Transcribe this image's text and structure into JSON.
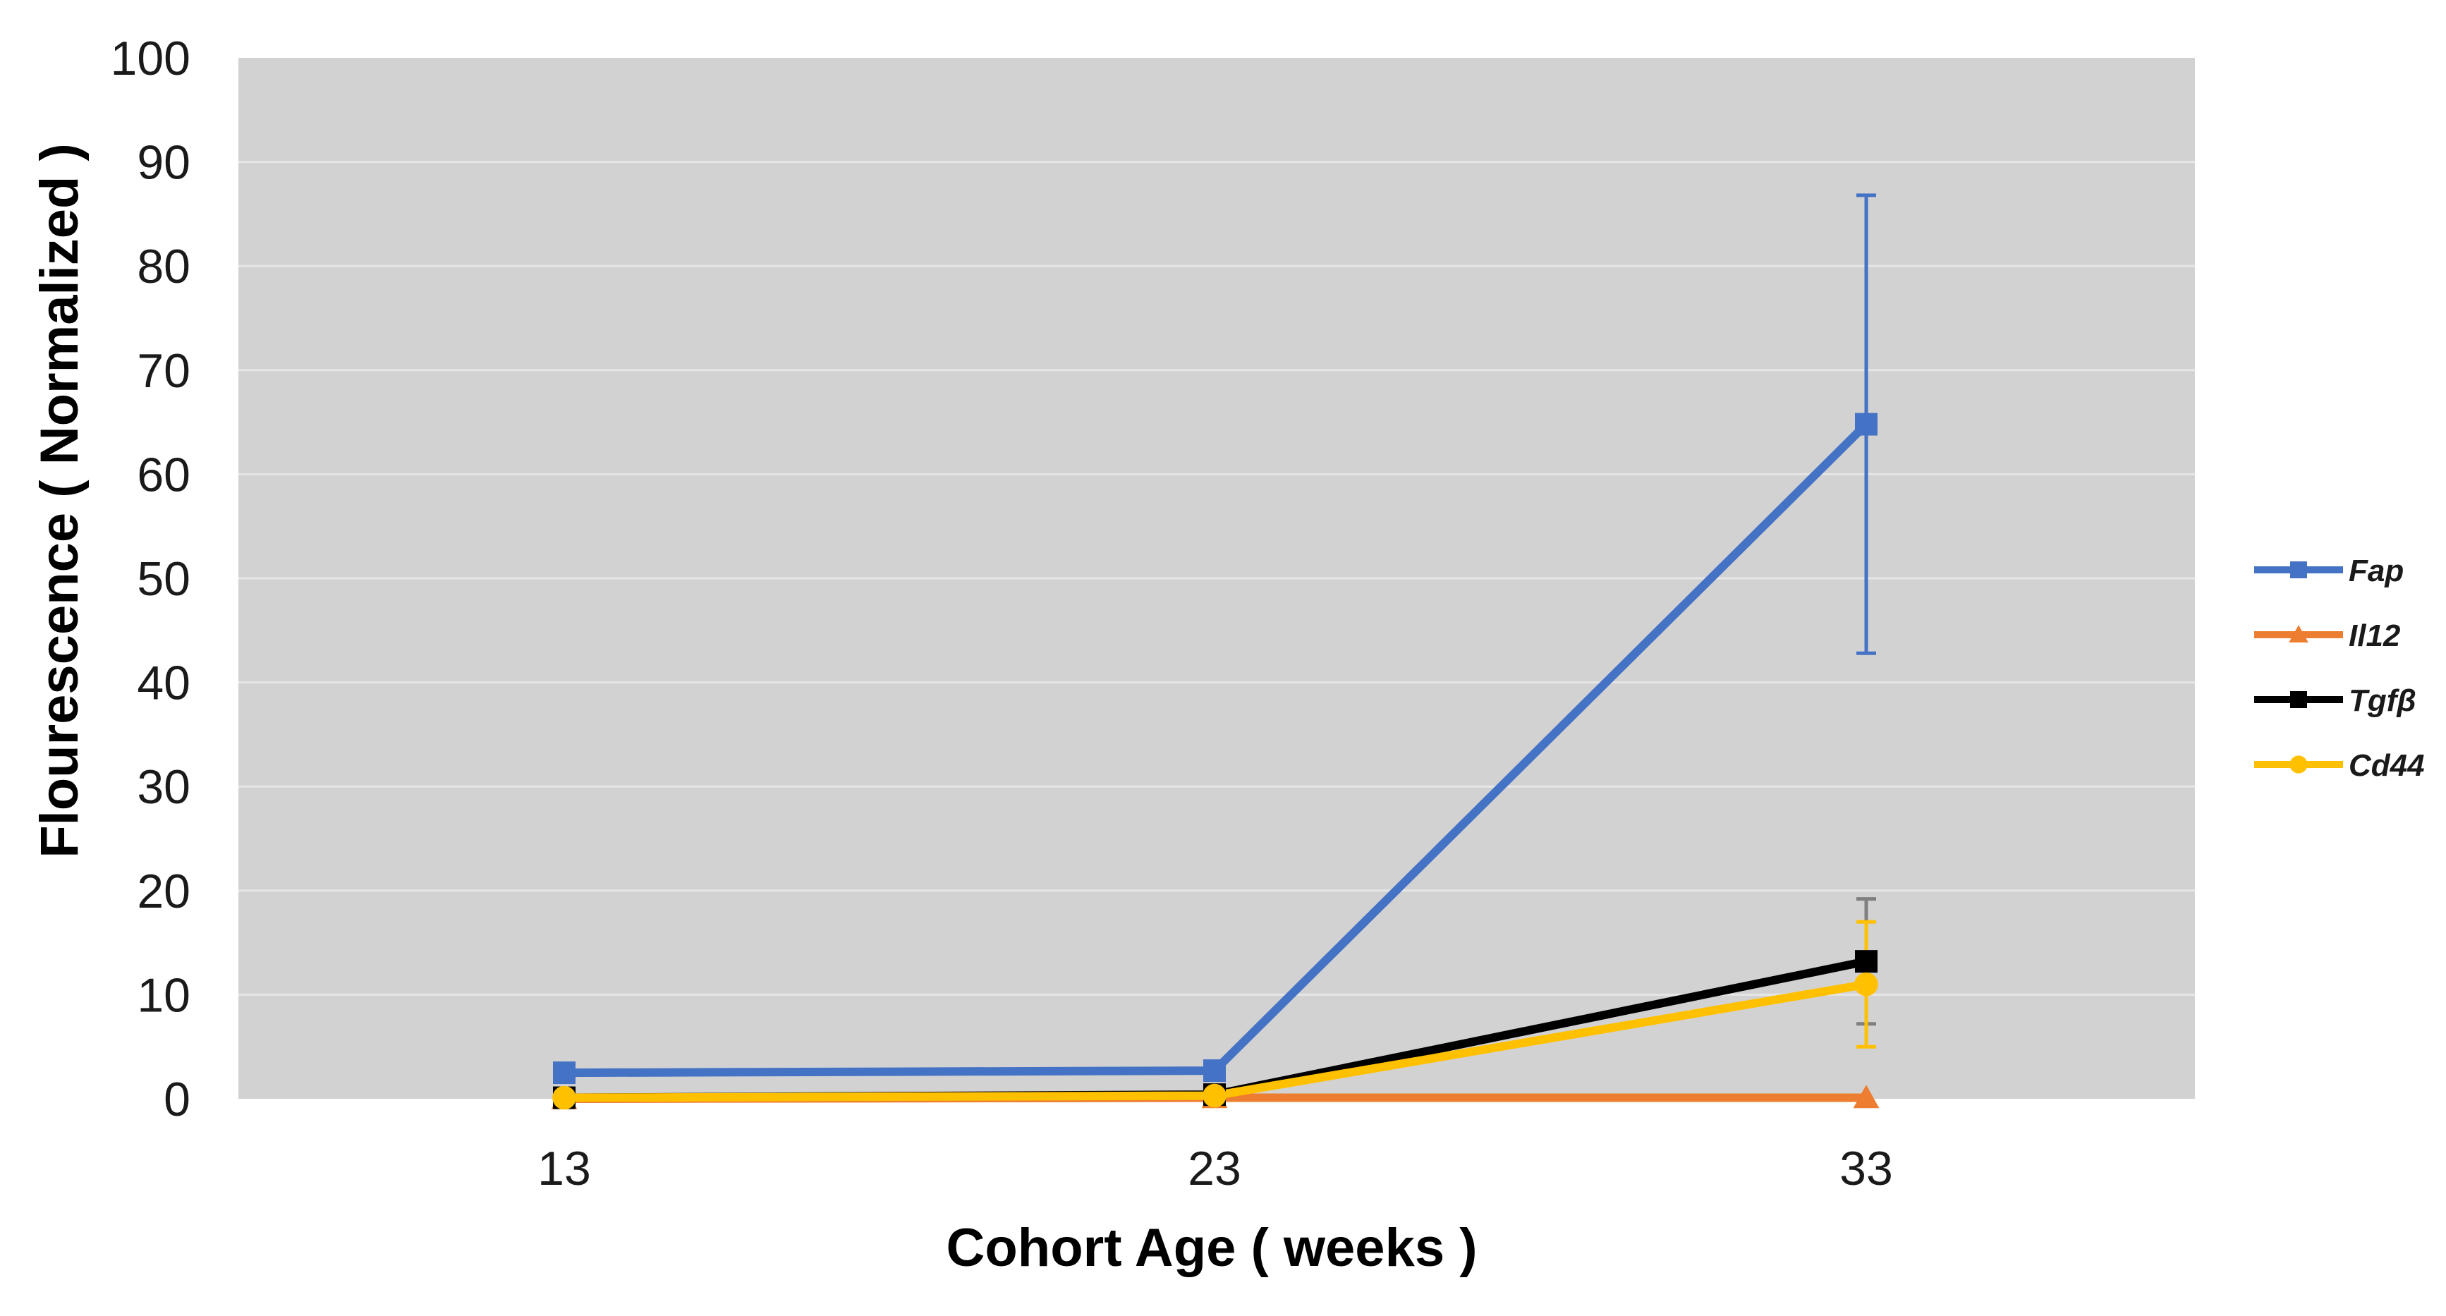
{
  "chart_data": {
    "type": "line",
    "title": "",
    "xlabel": "Cohort Age ( weeks )",
    "ylabel": "Flourescence ( Normalized )",
    "categories": [
      "13",
      "23",
      "33"
    ],
    "x": [
      13,
      23,
      33
    ],
    "ylim": [
      0,
      100
    ],
    "yticks": [
      0,
      10,
      20,
      30,
      40,
      50,
      60,
      70,
      80,
      90,
      100
    ],
    "grid": true,
    "plot_background": "#d3d2d3",
    "gridline_color": "#e6e6e6",
    "legend_position": "right",
    "series": [
      {
        "name": "Fap",
        "color": "#4472c4",
        "marker": "square",
        "values": [
          2.5,
          2.7,
          64.8
        ],
        "error": [
          0,
          0,
          22
        ]
      },
      {
        "name": "Il12",
        "color": "#ed7d31",
        "marker": "triangle",
        "values": [
          0,
          0.1,
          0.1
        ],
        "error": [
          0,
          0,
          0
        ]
      },
      {
        "name": "Tgfβ",
        "color": "#000000",
        "marker": "square",
        "values": [
          0.1,
          0.4,
          13.2
        ],
        "error": [
          0,
          0,
          6
        ]
      },
      {
        "name": "Cd44",
        "color": "#ffc000",
        "marker": "circle",
        "values": [
          0.1,
          0.3,
          11.0
        ],
        "error": [
          0,
          0,
          6
        ]
      }
    ]
  }
}
